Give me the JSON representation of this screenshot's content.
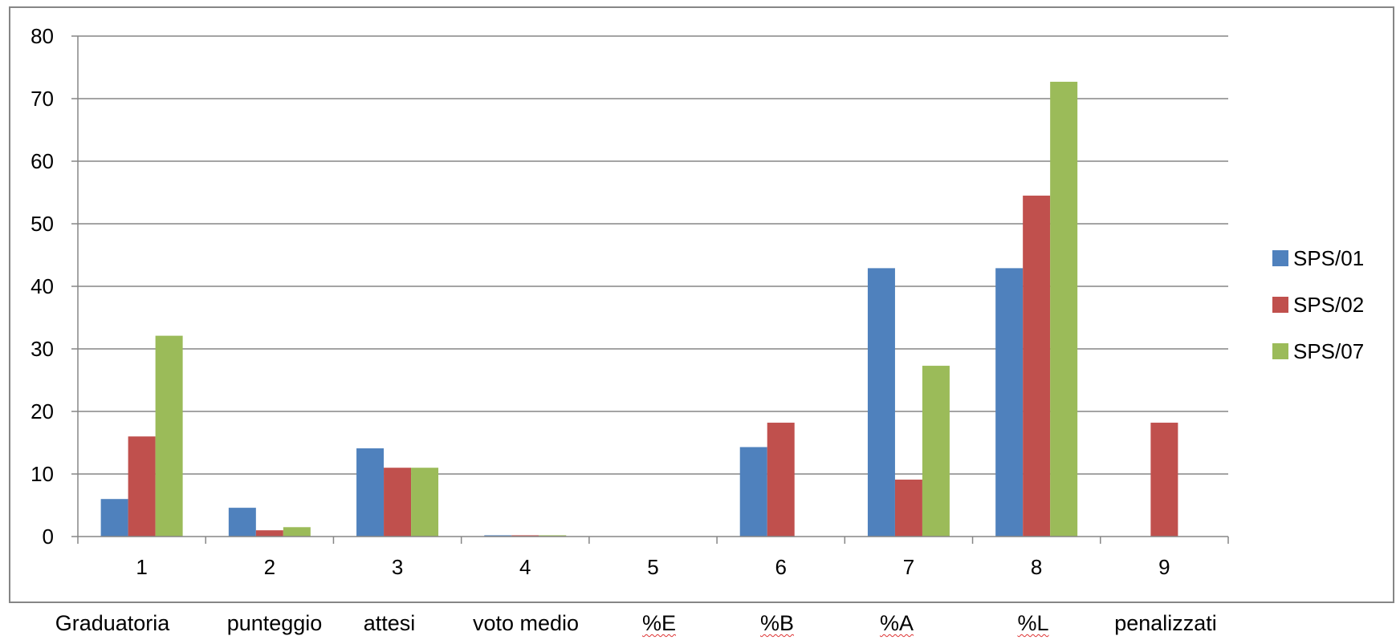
{
  "chart_data": {
    "type": "bar",
    "categories": [
      "1",
      "2",
      "3",
      "4",
      "5",
      "6",
      "7",
      "8",
      "9"
    ],
    "series": [
      {
        "name": "SPS/01",
        "color": "#4F81BD",
        "values": [
          6,
          4.6,
          14.1,
          0.2,
          0,
          14.3,
          42.9,
          42.9,
          0
        ]
      },
      {
        "name": "SPS/02",
        "color": "#C0504D",
        "values": [
          16,
          1,
          11,
          0.2,
          0,
          18.2,
          9.1,
          54.5,
          18.2
        ]
      },
      {
        "name": "SPS/07",
        "color": "#9BBB59",
        "values": [
          32.1,
          1.5,
          11,
          0.2,
          0,
          0,
          27.3,
          72.7,
          0
        ]
      }
    ],
    "ylim": [
      0,
      80
    ],
    "yticks": [
      0,
      10,
      20,
      30,
      40,
      50,
      60,
      70,
      80
    ],
    "grid": true,
    "legend": "right",
    "title": "",
    "xlabel": "",
    "ylabel": ""
  },
  "bottom_labels": [
    "Graduatoria",
    "punteggio",
    "attesi",
    "voto medio",
    "%E",
    "%B",
    "%A",
    "%L",
    "penalizzati"
  ]
}
